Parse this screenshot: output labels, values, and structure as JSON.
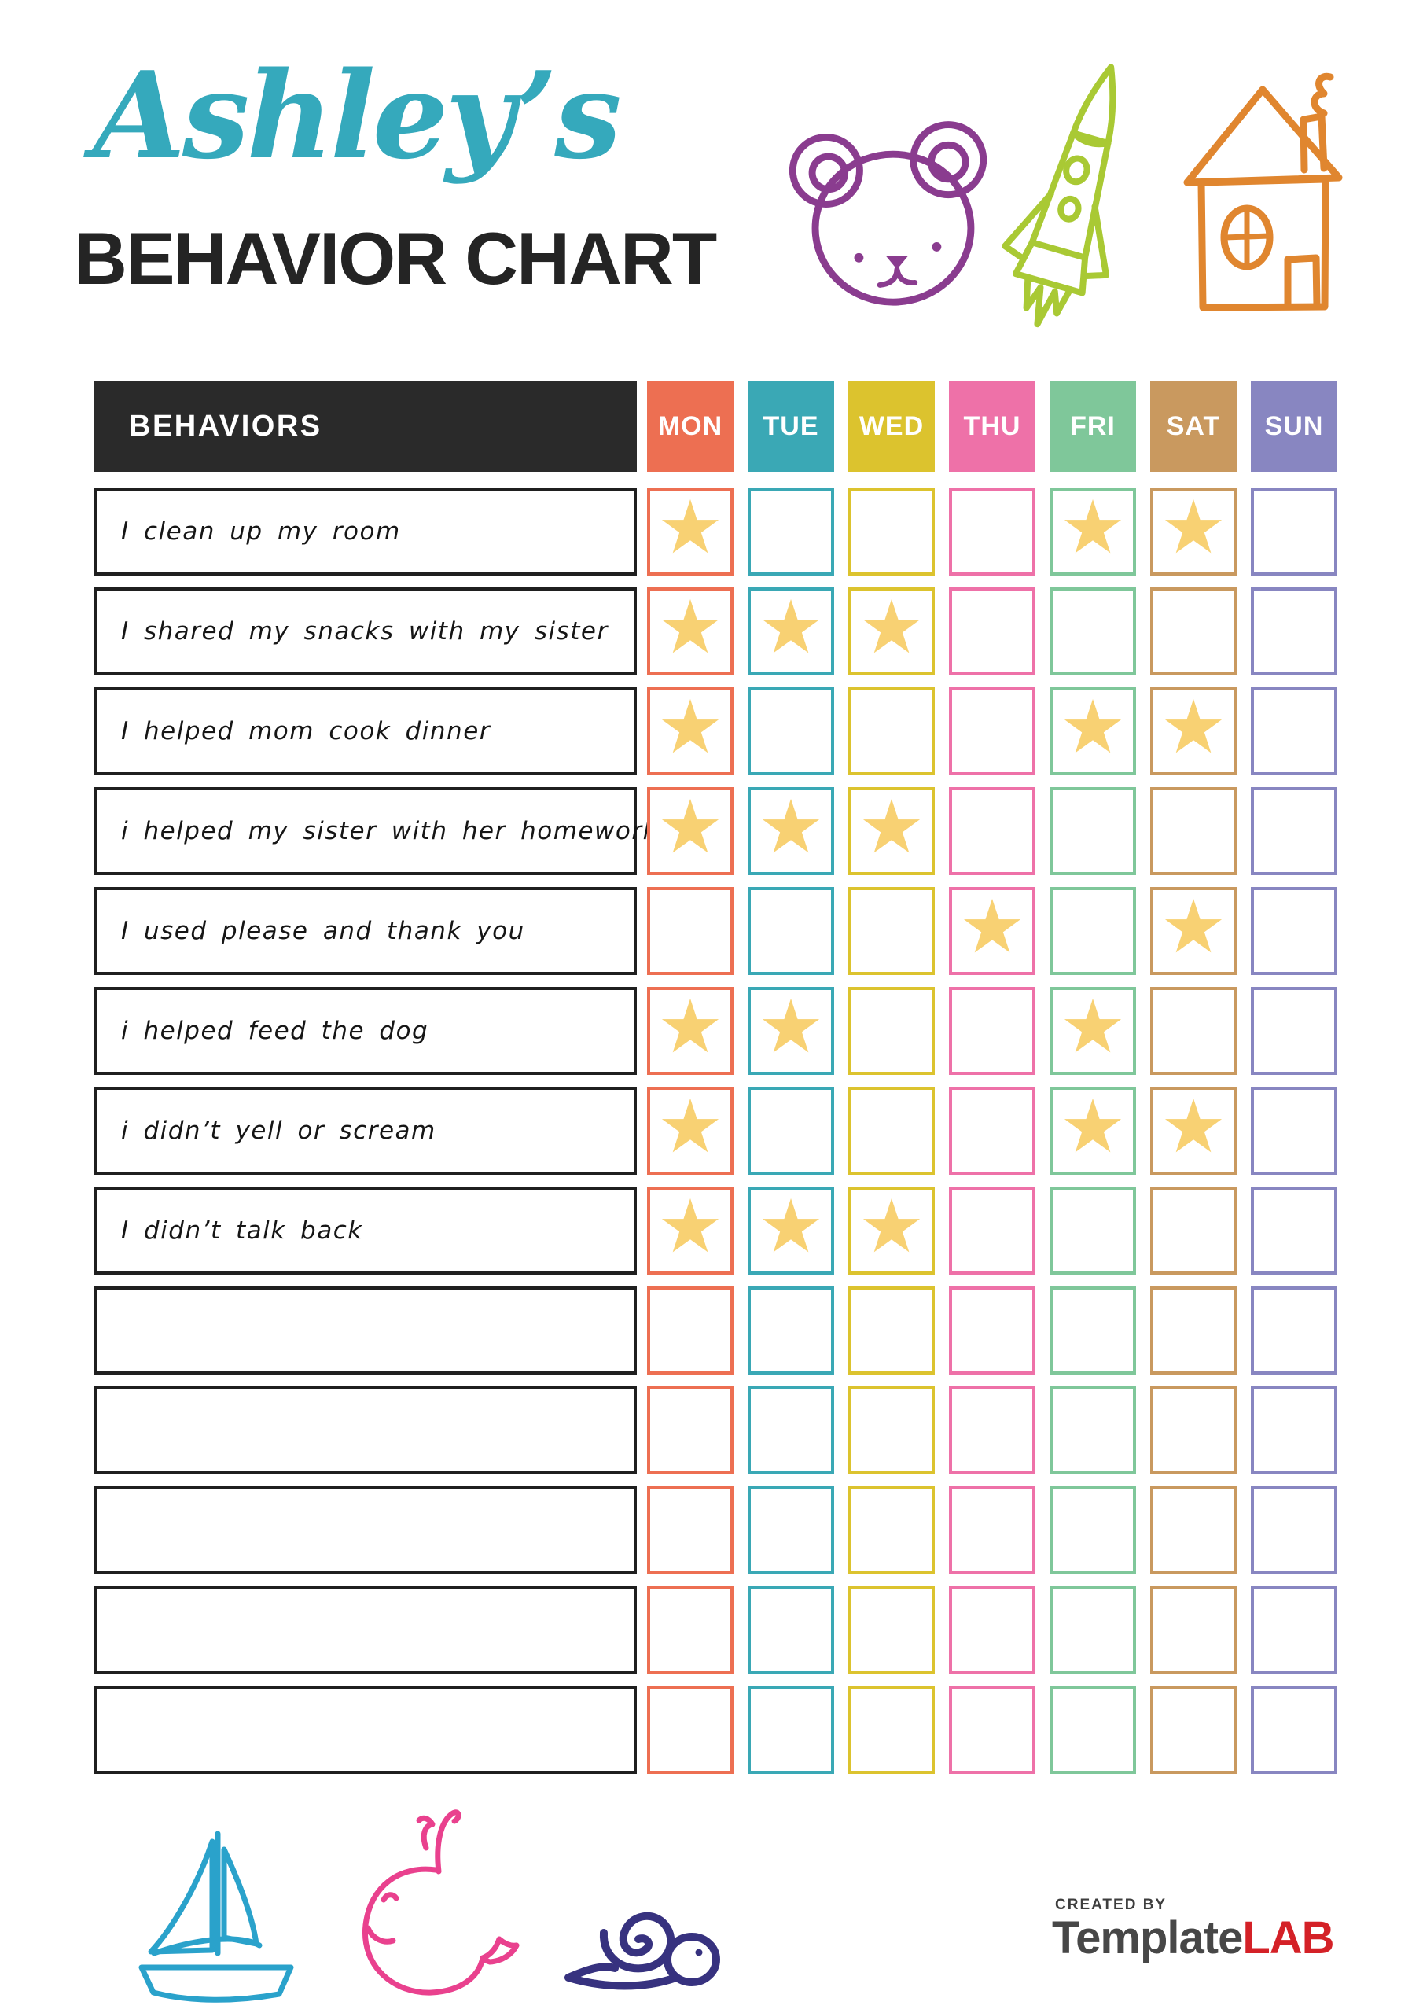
{
  "header": {
    "title_script": "Ashley’s",
    "title_script_color": "#35a9bc",
    "title_main": "BEHAVIOR CHART"
  },
  "table": {
    "behaviors_header": "BEHAVIORS",
    "header_bg": "#2a2a2a",
    "star_glyph": "★",
    "star_color": "#f8d173",
    "days": [
      {
        "label": "MON",
        "color": "#ed6f52"
      },
      {
        "label": "TUE",
        "color": "#3aa8b5"
      },
      {
        "label": "WED",
        "color": "#dcc32e"
      },
      {
        "label": "THU",
        "color": "#ee71a8"
      },
      {
        "label": "FRI",
        "color": "#7fc79a"
      },
      {
        "label": "SAT",
        "color": "#c9995f"
      },
      {
        "label": "SUN",
        "color": "#8886c1"
      }
    ],
    "rows": [
      {
        "label": "I clean up my room",
        "stars": [
          1,
          0,
          0,
          0,
          1,
          1,
          0
        ]
      },
      {
        "label": "I shared my snacks with my sister",
        "stars": [
          1,
          1,
          1,
          0,
          0,
          0,
          0
        ]
      },
      {
        "label": "I helped mom cook dinner",
        "stars": [
          1,
          0,
          0,
          0,
          1,
          1,
          0
        ]
      },
      {
        "label": "i helped my sister with her homework",
        "stars": [
          1,
          1,
          1,
          0,
          0,
          0,
          0
        ]
      },
      {
        "label": "I used please and thank you",
        "stars": [
          0,
          0,
          0,
          1,
          0,
          1,
          0
        ]
      },
      {
        "label": "i helped feed the dog",
        "stars": [
          1,
          1,
          0,
          0,
          1,
          0,
          0
        ]
      },
      {
        "label": "i didn’t yell or scream",
        "stars": [
          1,
          0,
          0,
          0,
          1,
          1,
          0
        ]
      },
      {
        "label": "I didn’t talk back",
        "stars": [
          1,
          1,
          1,
          0,
          0,
          0,
          0
        ]
      },
      {
        "label": "",
        "stars": [
          0,
          0,
          0,
          0,
          0,
          0,
          0
        ]
      },
      {
        "label": "",
        "stars": [
          0,
          0,
          0,
          0,
          0,
          0,
          0
        ]
      },
      {
        "label": "",
        "stars": [
          0,
          0,
          0,
          0,
          0,
          0,
          0
        ]
      },
      {
        "label": "",
        "stars": [
          0,
          0,
          0,
          0,
          0,
          0,
          0
        ]
      },
      {
        "label": "",
        "stars": [
          0,
          0,
          0,
          0,
          0,
          0,
          0
        ]
      }
    ]
  },
  "decorations": {
    "bear_color": "#8a3c8f",
    "rocket_color": "#a9c934",
    "house_color": "#e0862f",
    "sailboat_color": "#2aa2cb",
    "whale_color": "#e9418e",
    "snail_color": "#37327f"
  },
  "footer": {
    "created_by": "CREATED BY",
    "brand_part1": "Template",
    "brand_part2": "LAB",
    "brand_color1": "#474747",
    "brand_color2": "#d42127"
  }
}
